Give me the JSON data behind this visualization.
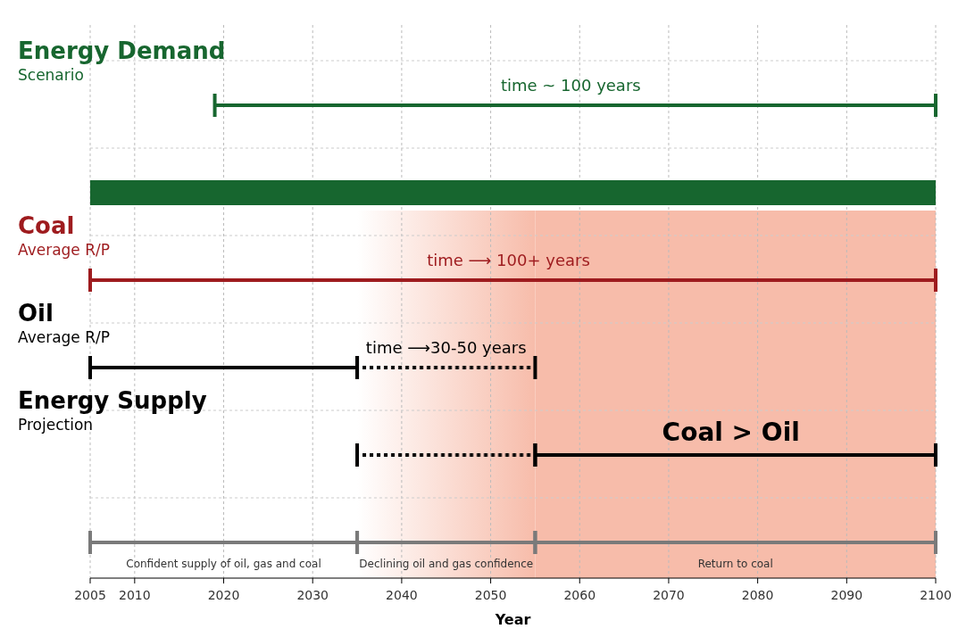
{
  "chart_data": {
    "type": "bar",
    "orientation": "horizontal",
    "xlabel": "Year",
    "categories": [
      "Energy Demand\nScenario",
      null,
      "Coal\nAverage R/P",
      "Oil\nAverage R/P",
      "Energy Supply\nProjection",
      null
    ],
    "xlim": [
      2005,
      2100
    ],
    "xticks": [
      2005,
      2010,
      2020,
      2030,
      2040,
      2050,
      2060,
      2070,
      2080,
      2090,
      2100
    ],
    "grid": true,
    "series": [
      {
        "line_style": "solid",
        "colors": [
          "#17662f",
          null,
          "#9e1b1e",
          "#000000",
          "#000000",
          "#7a7a7a"
        ],
        "base": [
          2019,
          null,
          2005,
          2005,
          2055,
          2005
        ],
        "values": [
          81,
          null,
          95,
          30,
          45,
          30
        ]
      },
      {
        "line_style": "dotted",
        "color": "#000000",
        "base": [
          null,
          null,
          null,
          2035,
          2035,
          null
        ],
        "values": [
          null,
          null,
          null,
          20,
          20,
          null
        ]
      },
      {
        "line_style": "solid",
        "color": "#7a7a7a",
        "base": [
          null,
          null,
          null,
          null,
          null,
          2035
        ],
        "values": [
          null,
          null,
          null,
          null,
          null,
          20
        ]
      },
      {
        "line_style": "solid",
        "color": "#7a7a7a",
        "base": [
          null,
          null,
          null,
          null,
          null,
          2055
        ],
        "values": [
          null,
          null,
          null,
          null,
          null,
          45
        ]
      },
      {
        "color": "#17662f",
        "base": [
          null,
          2005,
          null,
          null,
          null,
          null
        ],
        "values": [
          null,
          95,
          null,
          null,
          null,
          null
        ]
      }
    ],
    "bands": [
      {
        "axis": "x",
        "from": 2035,
        "to": 2055,
        "color": "#f7bcaa"
      },
      {
        "axis": "x",
        "from": 2055,
        "to": 2100,
        "color": "#f7bcaa"
      }
    ],
    "annotations": [
      "time ~ 100 years",
      "time ⟶ 100+ years",
      "time ⟶30-50 years",
      "Coal > Oil",
      "Confident supply of oil, gas and coal",
      "Declining oil and gas confidence",
      "Return to coal"
    ]
  }
}
